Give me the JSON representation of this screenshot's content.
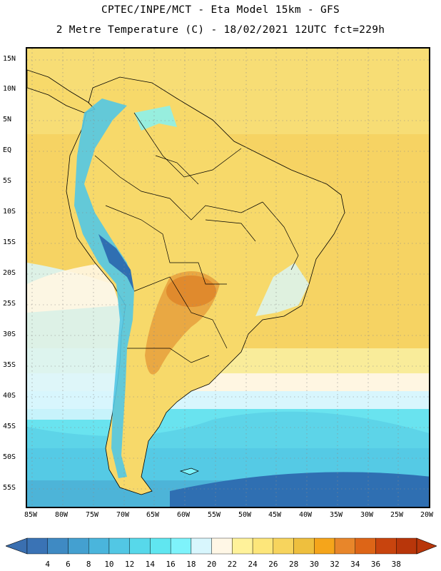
{
  "header": {
    "line1": "CPTEC/INPE/MCT -  Eta Model 15km - GFS",
    "line2": "2 Metre Temperature (C) - 18/02/2021 12UTC fct=229h"
  },
  "lat_labels": [
    "15N",
    "10N",
    "5N",
    "EQ",
    "5S",
    "10S",
    "15S",
    "20S",
    "25S",
    "30S",
    "35S",
    "40S",
    "45S",
    "50S",
    "55S"
  ],
  "lon_labels": [
    "85W",
    "80W",
    "75W",
    "70W",
    "65W",
    "60W",
    "55W",
    "50W",
    "45W",
    "40W",
    "35W",
    "30W",
    "25W",
    "20W"
  ],
  "colorbar": {
    "labels": [
      "4",
      "6",
      "8",
      "10",
      "12",
      "14",
      "16",
      "18",
      "20",
      "22",
      "24",
      "26",
      "28",
      "30",
      "32",
      "34",
      "36",
      "38"
    ],
    "colors": [
      "#3a73b5",
      "#3f8ac3",
      "#44a0d0",
      "#4ab5dc",
      "#52c7e4",
      "#57d8ea",
      "#60e6f0",
      "#7ef3fb",
      "#d8f6fd",
      "#fff7e6",
      "#fff29a",
      "#fde67a",
      "#f7d45d",
      "#eebf3e",
      "#f5a51b",
      "#e8862a",
      "#dd6517",
      "#c8440e",
      "#b8360a"
    ],
    "arrow_left_color": "#3a6fb0",
    "arrow_right_color": "#b8360a"
  },
  "map_colors": {
    "warm_ocean": "#f6d363",
    "hot_land": "#e9a843",
    "hotspot": "#e08a2d",
    "cool_water": "#d8f6fd",
    "very_cold_water": "#2f6fb2"
  }
}
